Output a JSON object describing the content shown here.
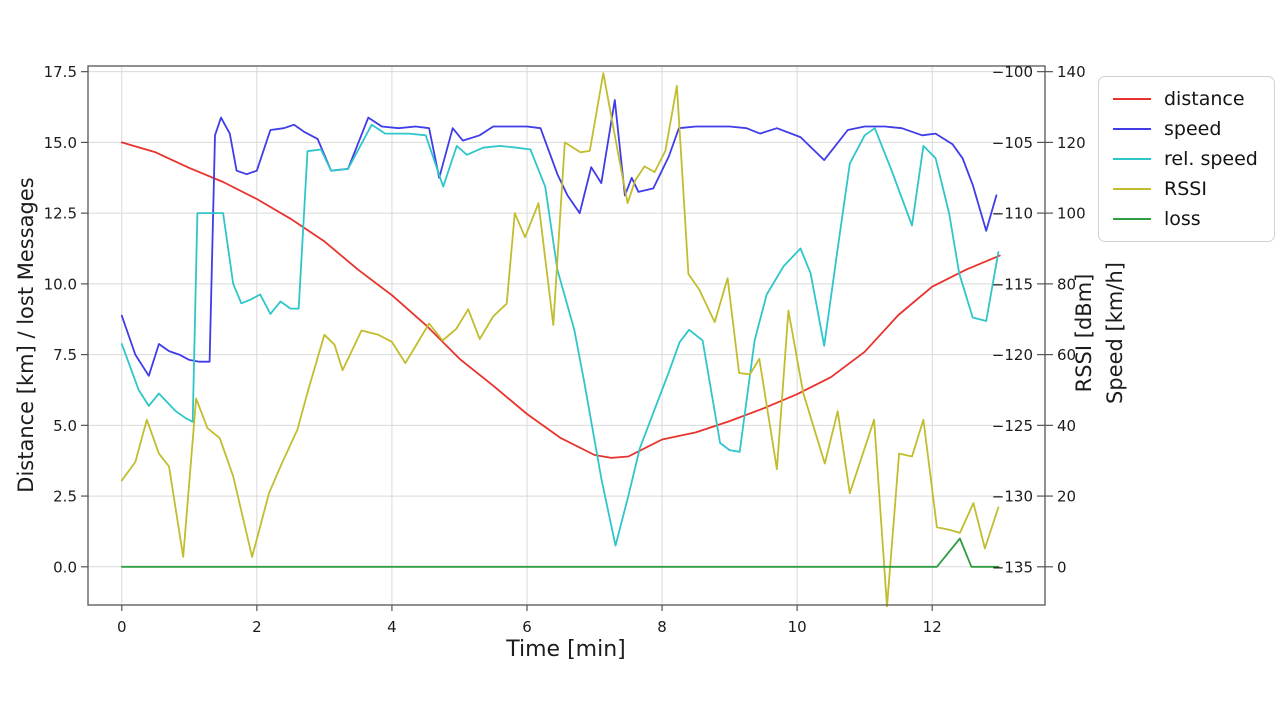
{
  "chart_data": {
    "type": "line",
    "title": "",
    "xlabel": "Time [min]",
    "ylabel_left": "Distance [km] / lost Messages",
    "ylabel_rssi": "RSSI [dBm]",
    "ylabel_speed": "Speed [km/h]",
    "grid": true,
    "legend_position": "outside upper right",
    "xlim": [
      -0.5,
      13.67
    ],
    "ylim_left": [
      -1.35,
      17.7
    ],
    "ylim_rssi": [
      -137.7,
      -99.6
    ],
    "ylim_speed": [
      -10.8,
      141.6
    ],
    "xticks": {
      "values": [
        0,
        2,
        4,
        6,
        8,
        10,
        12
      ],
      "labels": [
        "0",
        "2",
        "4",
        "6",
        "8",
        "10",
        "12"
      ]
    },
    "yticks_left": {
      "values": [
        0,
        2.5,
        5,
        7.5,
        10,
        12.5,
        15,
        17.5
      ],
      "labels": [
        "0.0",
        "2.5",
        "5.0",
        "7.5",
        "10.0",
        "12.5",
        "15.0",
        "17.5"
      ]
    },
    "yticks_rssi": {
      "values": [
        -135,
        -130,
        -125,
        -120,
        -115,
        -110,
        -105,
        -100
      ],
      "labels": [
        "−135",
        "−130",
        "−125",
        "−120",
        "−115",
        "−110",
        "−105",
        "−100"
      ]
    },
    "yticks_speed": {
      "values": [
        0,
        20,
        40,
        60,
        80,
        100,
        120,
        140
      ],
      "labels": [
        "0",
        "20",
        "40",
        "60",
        "80",
        "100",
        "120",
        "140"
      ]
    },
    "series": [
      {
        "name": "distance",
        "color": "#e8332d",
        "axis": "left",
        "unit": "km",
        "x": [
          0,
          0.5,
          1.0,
          1.5,
          2.0,
          2.5,
          3.0,
          3.5,
          4.0,
          4.5,
          5.0,
          5.5,
          6.0,
          6.5,
          7.0,
          7.25,
          7.5,
          8.0,
          8.5,
          9.0,
          9.5,
          10.0,
          10.5,
          11.0,
          11.5,
          12.0,
          12.5,
          13.0
        ],
        "y": [
          15.0,
          14.65,
          14.1,
          13.6,
          13.0,
          12.3,
          11.5,
          10.5,
          9.6,
          8.55,
          7.35,
          6.4,
          5.4,
          4.55,
          3.95,
          3.85,
          3.9,
          4.5,
          4.75,
          5.15,
          5.6,
          6.1,
          6.7,
          7.6,
          8.9,
          9.9,
          10.5,
          11.0
        ]
      },
      {
        "name": "speed",
        "color": "#3f3ce8",
        "axis": "speed",
        "unit": "km/h",
        "x": [
          0,
          0.2,
          0.4,
          0.55,
          0.7,
          0.85,
          1.0,
          1.15,
          1.3,
          1.38,
          1.47,
          1.6,
          1.7,
          1.85,
          2.0,
          2.2,
          2.4,
          2.55,
          2.7,
          2.9,
          3.1,
          3.35,
          3.65,
          3.85,
          4.1,
          4.35,
          4.55,
          4.7,
          4.9,
          5.05,
          5.3,
          5.5,
          5.75,
          6.0,
          6.2,
          6.45,
          6.6,
          6.78,
          6.95,
          7.1,
          7.3,
          7.45,
          7.55,
          7.65,
          7.87,
          8.1,
          8.25,
          8.5,
          8.75,
          9.0,
          9.25,
          9.45,
          9.7,
          10.05,
          10.4,
          10.75,
          11.0,
          11.3,
          11.55,
          11.85,
          12.05,
          12.3,
          12.45,
          12.6,
          12.8,
          12.95
        ],
        "y": [
          71,
          60,
          54,
          63,
          61,
          60,
          58.5,
          58,
          58,
          122,
          127,
          122.5,
          112,
          111,
          112,
          123.5,
          124,
          125,
          123,
          121,
          112,
          112.5,
          127,
          124.5,
          124,
          124.5,
          124,
          110,
          124,
          120.5,
          122,
          124.5,
          124.5,
          124.5,
          124,
          111,
          105,
          100,
          113,
          108.5,
          132,
          105,
          110,
          106,
          107,
          116,
          124,
          124.5,
          124.5,
          124.5,
          124,
          122.5,
          124,
          121.5,
          115,
          123.5,
          124.5,
          124.5,
          124,
          122,
          122.5,
          119.5,
          115.5,
          108,
          95,
          105
        ]
      },
      {
        "name": "rel. speed",
        "color": "#2fc6ca",
        "axis": "speed",
        "unit": "km/h",
        "x": [
          0,
          0.25,
          0.4,
          0.55,
          0.7,
          0.8,
          0.95,
          1.05,
          1.12,
          1.3,
          1.5,
          1.65,
          1.77,
          1.9,
          2.05,
          2.2,
          2.35,
          2.5,
          2.62,
          2.75,
          2.95,
          3.1,
          3.35,
          3.7,
          3.9,
          4.0,
          4.25,
          4.5,
          4.76,
          4.96,
          5.11,
          5.35,
          5.6,
          5.85,
          6.05,
          6.27,
          6.45,
          6.7,
          6.85,
          7.1,
          7.31,
          7.5,
          7.67,
          7.9,
          8.1,
          8.26,
          8.4,
          8.6,
          8.86,
          9.0,
          9.15,
          9.37,
          9.55,
          9.8,
          10.05,
          10.2,
          10.4,
          10.6,
          10.78,
          11.0,
          11.15,
          11.4,
          11.7,
          11.87,
          12.05,
          12.25,
          12.4,
          12.6,
          12.8,
          12.98
        ],
        "y": [
          63,
          50,
          45.5,
          49,
          46,
          44,
          42,
          41,
          100,
          100,
          100,
          80,
          74.5,
          75.5,
          77,
          71.5,
          75,
          73,
          73,
          117.5,
          118,
          112,
          112.5,
          125,
          122.5,
          122.5,
          122.5,
          122,
          107.5,
          119,
          116.5,
          118.5,
          119,
          118.5,
          118,
          107.5,
          84,
          67,
          52,
          25,
          6,
          20,
          33.5,
          45,
          55,
          63.5,
          67,
          64,
          35,
          33,
          32.5,
          64,
          77,
          85,
          90,
          83,
          62.5,
          90,
          114,
          122,
          124,
          112,
          96.5,
          119,
          115.5,
          100,
          83,
          70.5,
          69.5,
          89
        ]
      },
      {
        "name": "RSSI",
        "color": "#c2bd2e",
        "axis": "rssi",
        "unit": "dBm",
        "x": [
          0,
          0.2,
          0.37,
          0.55,
          0.7,
          0.91,
          1.1,
          1.27,
          1.45,
          1.65,
          1.93,
          2.18,
          2.37,
          2.6,
          2.76,
          3.0,
          3.15,
          3.27,
          3.55,
          3.8,
          4.0,
          4.2,
          4.55,
          4.75,
          4.95,
          5.13,
          5.3,
          5.5,
          5.7,
          5.82,
          5.97,
          6.17,
          6.39,
          6.56,
          6.79,
          6.93,
          7.13,
          7.37,
          7.49,
          7.6,
          7.74,
          7.89,
          8.05,
          8.22,
          8.39,
          8.55,
          8.78,
          8.97,
          9.14,
          9.3,
          9.44,
          9.7,
          9.87,
          10.09,
          10.41,
          10.6,
          10.78,
          11.14,
          11.33,
          11.51,
          11.7,
          11.87,
          12.07,
          12.27,
          12.41,
          12.61,
          12.78,
          12.98
        ],
        "y": [
          -128.9,
          -127.6,
          -124.6,
          -127,
          -127.9,
          -134.3,
          -123.1,
          -125.2,
          -125.9,
          -128.6,
          -134.3,
          -129.8,
          -127.7,
          -125.3,
          -122.5,
          -118.6,
          -119.3,
          -121.1,
          -118.3,
          -118.6,
          -119.1,
          -120.6,
          -117.8,
          -119,
          -118.2,
          -116.8,
          -118.9,
          -117.3,
          -116.4,
          -110,
          -111.7,
          -109.3,
          -117.9,
          -105,
          -105.7,
          -105.6,
          -100.1,
          -106.3,
          -109.3,
          -107.7,
          -106.7,
          -107.1,
          -105.6,
          -101,
          -114.3,
          -115.4,
          -117.7,
          -114.6,
          -121.3,
          -121.4,
          -120.3,
          -128.1,
          -116.9,
          -122.7,
          -127.7,
          -124,
          -129.8,
          -124.6,
          -137.8,
          -127,
          -127.2,
          -124.6,
          -132.2,
          -132.4,
          -132.6,
          -130.5,
          -133.7,
          -130.8
        ]
      },
      {
        "name": "loss",
        "color": "#2e9e40",
        "axis": "left",
        "unit": "lost messages",
        "x": [
          0,
          12.07,
          12.41,
          12.58,
          12.98
        ],
        "y": [
          0,
          0,
          1,
          0,
          0
        ]
      }
    ]
  }
}
